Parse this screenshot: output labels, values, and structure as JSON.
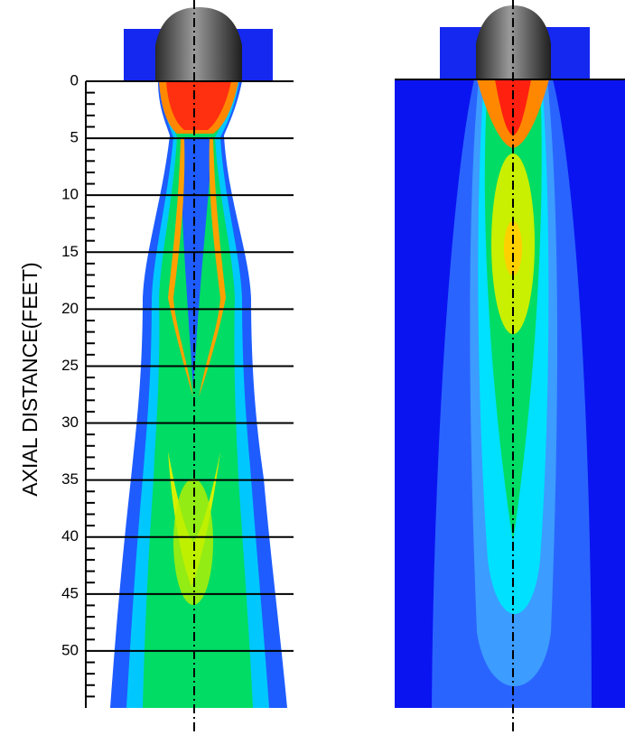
{
  "chart_data": {
    "type": "contour",
    "ylabel": "AXIAL DISTANCE(FEET)",
    "ylim": [
      0,
      55
    ],
    "yticks": [
      0,
      5,
      10,
      15,
      20,
      25,
      30,
      35,
      40,
      45,
      50
    ],
    "y_inverted": true
  }
}
